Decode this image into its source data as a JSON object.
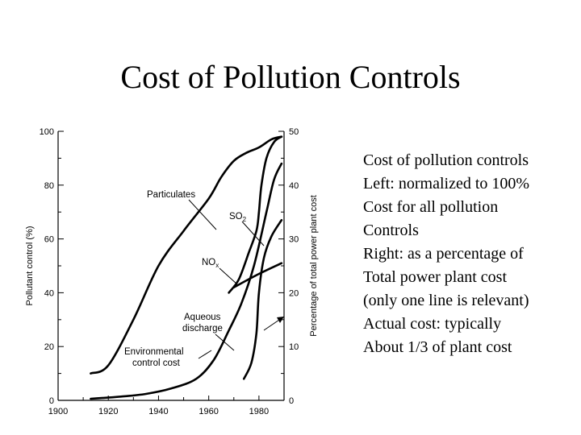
{
  "slide": {
    "title": "Cost of Pollution Controls",
    "notes": [
      "Cost of pollution controls",
      "Left: normalized to 100%",
      "Cost for all pollution",
      "Controls",
      "Right: as a percentage of",
      "Total power plant cost",
      "(only one line is relevant)",
      "Actual cost: typically",
      "About 1/3 of plant cost"
    ]
  },
  "chart_data": {
    "type": "line",
    "title": "",
    "xlabel": "",
    "ylabel": "Pollutant control (%)",
    "y2label": "Percentage of total power plant cost",
    "xlim": [
      1900,
      1990
    ],
    "ylim": [
      0,
      100
    ],
    "y2lim": [
      0,
      50
    ],
    "xticks": [
      1900,
      1920,
      1940,
      1960,
      1980
    ],
    "yticks": [
      0,
      20,
      40,
      60,
      80,
      100
    ],
    "y2ticks": [
      0,
      10,
      20,
      30,
      40,
      50
    ],
    "grid": false,
    "series": [
      {
        "name": "Particulates",
        "axis": "left",
        "points": [
          [
            1913,
            10
          ],
          [
            1920,
            13
          ],
          [
            1930,
            30
          ],
          [
            1940,
            50
          ],
          [
            1950,
            63
          ],
          [
            1960,
            75
          ],
          [
            1965,
            83
          ],
          [
            1970,
            89
          ],
          [
            1975,
            92
          ],
          [
            1980,
            94
          ],
          [
            1985,
            97
          ],
          [
            1989,
            98
          ]
        ]
      },
      {
        "name": "SO2",
        "axis": "left",
        "points": [
          [
            1968,
            40
          ],
          [
            1972,
            45
          ],
          [
            1976,
            55
          ],
          [
            1979,
            63
          ],
          [
            1980,
            70
          ],
          [
            1981,
            80
          ],
          [
            1983,
            90
          ],
          [
            1986,
            96
          ],
          [
            1989,
            98
          ]
        ]
      },
      {
        "name": "NOx",
        "axis": "left",
        "points": [
          [
            1970,
            42
          ],
          [
            1980,
            47
          ],
          [
            1989,
            51
          ]
        ]
      },
      {
        "name": "Aqueous discharge",
        "axis": "left",
        "points": [
          [
            1974,
            8
          ],
          [
            1977,
            14
          ],
          [
            1979,
            25
          ],
          [
            1980,
            40
          ],
          [
            1982,
            53
          ],
          [
            1985,
            61
          ],
          [
            1989,
            67
          ]
        ]
      },
      {
        "name": "Environmental control cost",
        "axis": "right",
        "points": [
          [
            1913,
            0.3
          ],
          [
            1925,
            0.7
          ],
          [
            1935,
            1.2
          ],
          [
            1945,
            2.2
          ],
          [
            1955,
            4
          ],
          [
            1962,
            7.5
          ],
          [
            1968,
            13
          ],
          [
            1973,
            18
          ],
          [
            1978,
            25
          ],
          [
            1983,
            35
          ],
          [
            1986,
            41
          ],
          [
            1989,
            44
          ]
        ]
      }
    ],
    "annotations": {
      "particulates": "Particulates",
      "so2": "SO",
      "so2_sub": "2",
      "nox": "NO",
      "nox_sub": "x",
      "aqueous_line1": "Aqueous",
      "aqueous_line2": "discharge",
      "env_line1": "Environmental",
      "env_line2": "control cost"
    }
  }
}
